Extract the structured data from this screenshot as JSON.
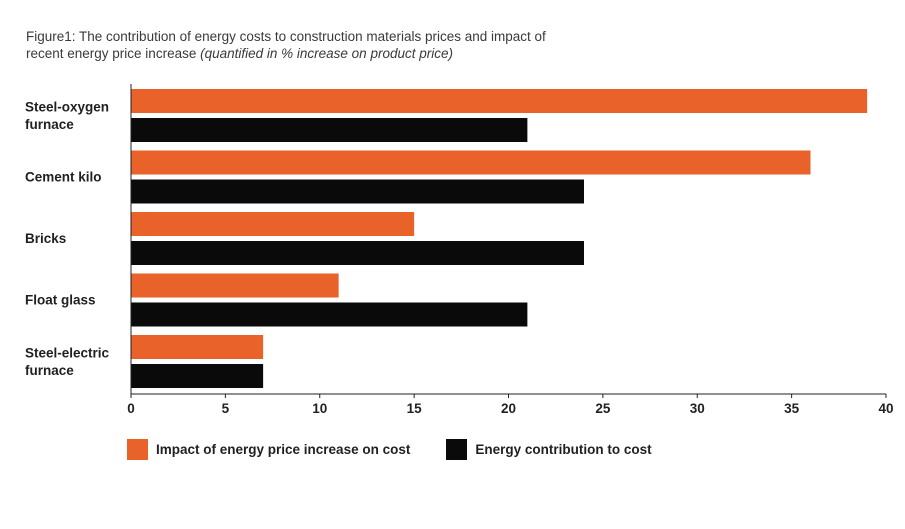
{
  "title": {
    "line1": "Figure1: The contribution of energy costs to construction materials prices and impact of",
    "line2_plain": "recent energy price increase ",
    "line2_italic": "(quantified in % increase on product price)"
  },
  "colors": {
    "impact": "#e8622a",
    "contribution": "#0a0a0a"
  },
  "chart_data": {
    "type": "bar",
    "orientation": "horizontal",
    "categories": [
      [
        "Steel-oxygen",
        "furnace"
      ],
      [
        "Cement kilo"
      ],
      [
        "Bricks"
      ],
      [
        "Float glass"
      ],
      [
        "Steel-electric",
        "furnace"
      ]
    ],
    "series": [
      {
        "name": "Impact of energy price increase on cost",
        "values": [
          39,
          36,
          15,
          11,
          7
        ]
      },
      {
        "name": "Energy contribution to cost",
        "values": [
          21,
          24,
          24,
          21,
          7
        ]
      }
    ],
    "xlim": [
      0,
      40
    ],
    "xticks": [
      0,
      5,
      10,
      15,
      20,
      25,
      30,
      35,
      40
    ],
    "grid": false,
    "legend_position": "bottom-left"
  }
}
